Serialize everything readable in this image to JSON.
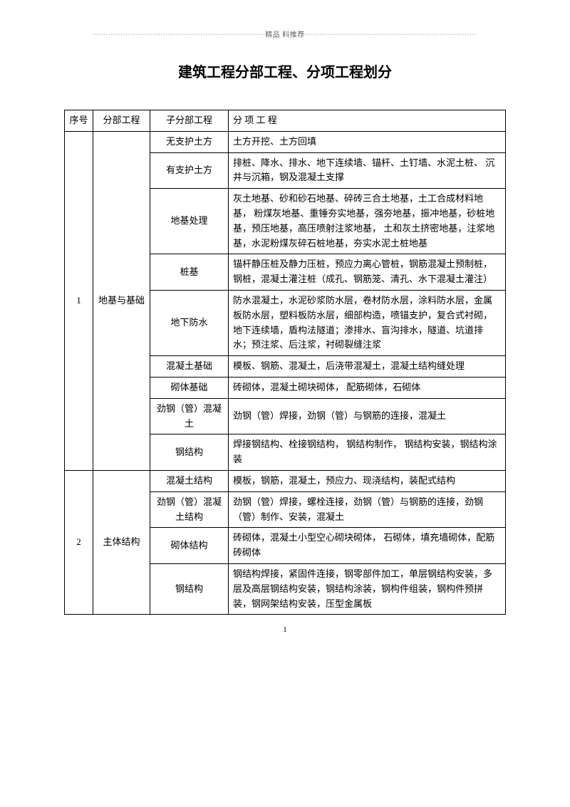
{
  "header_text": "精品 料推荐",
  "title": "建筑工程分部工程、分项工程划分",
  "page_num": "1",
  "headers": {
    "seq": "序号",
    "main": "分部工程",
    "sub": "子分部工程",
    "detail": "分 项 工 程"
  },
  "sections": [
    {
      "seq": "1",
      "main": "地基与基础",
      "rows": [
        {
          "sub": "无支护土方",
          "detail": "土方开挖、土方回填"
        },
        {
          "sub": "有支护土方",
          "detail": "排桩、降水、排水、地下连续墙、锚杆、土钉墙、水泥土桩、 沉井与沉箱，钢及混凝土支撑"
        },
        {
          "sub": "地基处理",
          "detail": "灰土地基、砂和砂石地基、碎砖三合土地基，土工合成材料地基， 粉煤灰地基、重锤夯实地基，强夯地基，振冲地基，砂桩地基，预压地基，高压喷射注浆地基， 土和灰土挤密地基，注浆地基，水泥粉煤灰碎石桩地基，夯实水泥土桩地基"
        },
        {
          "sub": "桩基",
          "detail": "锚杆静压桩及静力压桩，预应力离心管桩，钢筋混凝土预制桩，钢桩，混凝土灌注桩（成孔、钢筋笼、清孔、水下混凝土灌注）"
        },
        {
          "sub": "地下防水",
          "detail": "防水混凝土，水泥砂浆防水层，卷材防水层，涂料防水层，金属板防水层，塑料板防水层，细部构造，喷锚支护，复合式衬砌， 地下连续墙，盾构法隧道；渗排水、盲沟排水，隧道、坑道排水；预注浆、后注浆，衬砌裂缝注浆"
        },
        {
          "sub": "混凝土基础",
          "detail": "模板、钢筋、混凝土，后浇带混凝土，混凝土结构缝处理"
        },
        {
          "sub": "砌体基础",
          "detail": "砖砌体，混凝土砌块砌体， 配筋砌体，石砌体"
        },
        {
          "sub": "劲钢（管）混凝土",
          "detail": "劲钢（管）焊接，劲钢（管）与钢筋的连接，混凝土"
        },
        {
          "sub": "钢结构",
          "detail": "焊接钢结构、栓接钢结构， 钢结构制作， 钢结构安装，钢结构涂装"
        }
      ]
    },
    {
      "seq": "2",
      "main": "主体结构",
      "rows": [
        {
          "sub": "混凝土结构",
          "detail": "模板，钢筋，混凝土，预应力、现浇结构，装配式结构"
        },
        {
          "sub": "劲钢（管）混凝土结构",
          "detail": "劲钢（管）焊接，螺栓连接，劲钢（管）与钢筋的连接，劲钢（管）制作、安装，混凝土"
        },
        {
          "sub": "砌体结构",
          "detail": "砖砌体，混凝土小型空心砌块砌体， 石砌体，填充墙砌体，配筋砖砌体"
        },
        {
          "sub": "钢结构",
          "detail": "钢结构焊接，紧固件连接，钢零部件加工，单层钢结构安装，多层及高层钢结构安装，钢结构涂装，钢构件组装，钢构件预拼装，钢网架结构安装，压型金属板"
        }
      ]
    }
  ]
}
